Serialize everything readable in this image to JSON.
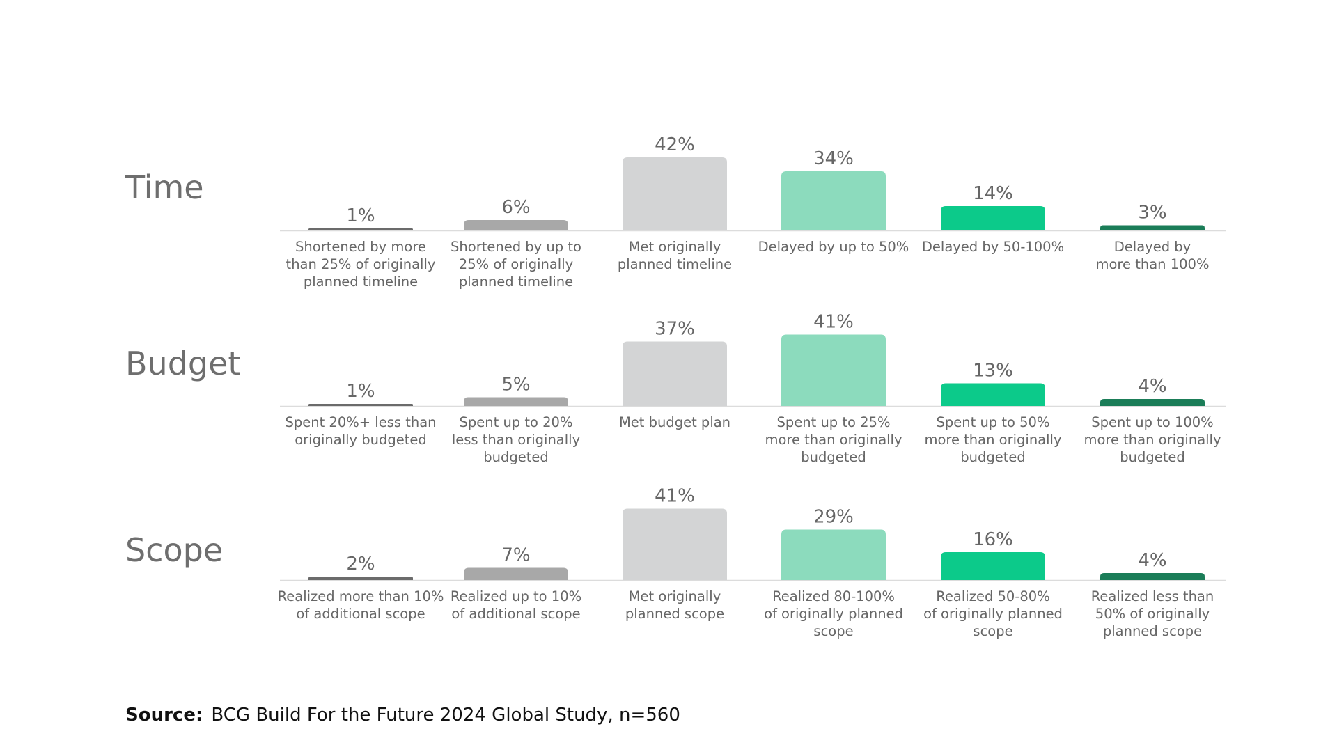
{
  "chart_data": {
    "type": "bar",
    "colors": [
      "#6b6b6b",
      "#a8a8a8",
      "#d3d4d5",
      "#8cdbbd",
      "#0cca8a",
      "#1b7d58"
    ],
    "groups": [
      {
        "name": "Time",
        "categories": [
          "Shortened by more\nthan 25% of originally\nplanned timeline",
          "Shortened by up to\n25% of originally\nplanned timeline",
          "Met originally\nplanned timeline",
          "Delayed by up to 50%",
          "Delayed by 50-100%",
          "Delayed by\nmore than 100%"
        ],
        "values": [
          1,
          6,
          42,
          34,
          14,
          3
        ],
        "labels": [
          "1%",
          "6%",
          "42%",
          "34%",
          "14%",
          "3%"
        ]
      },
      {
        "name": "Budget",
        "categories": [
          "Spent 20%+ less than\noriginally budgeted",
          "Spent up to 20%\nless than originally\nbudgeted",
          "Met budget plan",
          "Spent up to 25%\nmore than originally\nbudgeted",
          "Spent up to 50%\nmore than originally\nbudgeted",
          "Spent up to 100%\nmore than originally\nbudgeted"
        ],
        "values": [
          1,
          5,
          37,
          41,
          13,
          4
        ],
        "labels": [
          "1%",
          "5%",
          "37%",
          "41%",
          "13%",
          "4%"
        ]
      },
      {
        "name": "Scope",
        "categories": [
          "Realized more than 10%\nof additional scope",
          "Realized up to 10%\nof additional scope",
          "Met originally\nplanned scope",
          "Realized 80-100%\nof originally planned\nscope",
          "Realized 50-80%\nof originally planned\nscope",
          "Realized less than\n50% of originally\nplanned scope"
        ],
        "values": [
          2,
          7,
          41,
          29,
          16,
          4
        ],
        "labels": [
          "2%",
          "7%",
          "41%",
          "29%",
          "16%",
          "4%"
        ]
      }
    ]
  },
  "source": {
    "label": "Source:",
    "text": "BCG Build For the Future 2024 Global Study, n=560"
  }
}
